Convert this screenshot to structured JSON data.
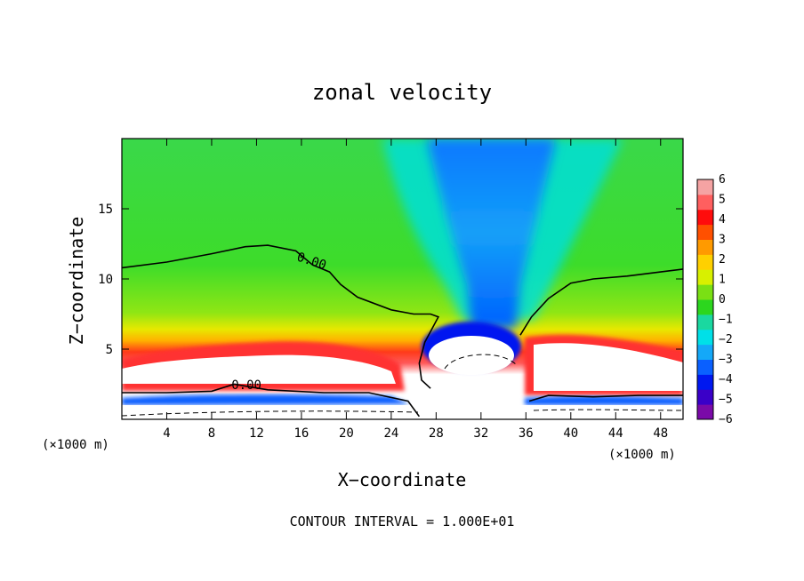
{
  "chart_data": {
    "type": "heatmap",
    "title": "zonal velocity",
    "xlabel": "X−coordinate",
    "ylabel": "Z−coordinate",
    "x_unit_label_left": "(×1000 m)",
    "x_unit_label_right": "(×1000 m)",
    "footer": "CONTOUR INTERVAL = 1.000E+01",
    "xlim": [
      0,
      50
    ],
    "ylim": [
      0,
      20
    ],
    "x_ticks": [
      4,
      8,
      12,
      16,
      20,
      24,
      28,
      32,
      36,
      40,
      44,
      48
    ],
    "x_tick_labels": [
      "4",
      "8",
      "12",
      "16",
      "20",
      "24",
      "28",
      "32",
      "36",
      "40",
      "44",
      "48"
    ],
    "y_ticks": [
      5,
      10,
      15
    ],
    "y_tick_labels": [
      "5",
      "10",
      "15"
    ],
    "colorbar": {
      "range": [
        -6,
        6
      ],
      "ticks": [
        6,
        5,
        4,
        3,
        2,
        1,
        0,
        -1,
        -2,
        -3,
        -4,
        -5,
        -6
      ],
      "tick_labels": [
        "6",
        "5",
        "4",
        "3",
        "2",
        "1",
        "0",
        "−1",
        "−2",
        "−3",
        "−4",
        "−5",
        "−6"
      ],
      "colors": [
        "#7a0aa8",
        "#3a00c8",
        "#0018f0",
        "#0a60ff",
        "#14a8f8",
        "#00e0e8",
        "#1ad8a0",
        "#2cd61e",
        "#7ae014",
        "#d8f000",
        "#ffd000",
        "#ff9a00",
        "#ff5000",
        "#ff0c0c",
        "#ff5f5f",
        "#f5a3a3"
      ]
    },
    "contour_labels": [
      {
        "text": "0.00",
        "x": 16.8,
        "y": 11.0,
        "rotation": 18
      },
      {
        "text": "0.00",
        "x": 11.1,
        "y": 2.15,
        "rotation": 0
      }
    ],
    "zero_contour_upper": {
      "x": [
        0,
        4,
        8,
        11,
        13,
        15.5,
        17,
        18.5,
        19.5,
        21,
        24,
        26,
        27.5,
        28.2,
        27,
        26.5,
        26.7,
        27.5
      ],
      "y": [
        10.8,
        11.2,
        11.8,
        12.3,
        12.4,
        12.0,
        11.0,
        10.5,
        9.6,
        8.7,
        7.8,
        7.5,
        7.5,
        7.3,
        5.5,
        4.0,
        2.8,
        2.2
      ]
    },
    "zero_contour_right": {
      "x": [
        35.5,
        36.5,
        38,
        40,
        42,
        45,
        48,
        50
      ],
      "y": [
        6.0,
        7.3,
        8.6,
        9.7,
        10.0,
        10.2,
        10.5,
        10.7
      ]
    },
    "zero_contour_lower": {
      "x": [
        0,
        4,
        8,
        10,
        13,
        18,
        22,
        25.5,
        26.5
      ],
      "y": [
        1.9,
        1.9,
        2.0,
        2.5,
        2.1,
        1.9,
        1.9,
        1.3,
        0.2
      ]
    },
    "zero_contour_lower_right": {
      "x": [
        36.3,
        38,
        42,
        46,
        50
      ],
      "y": [
        1.3,
        1.7,
        1.6,
        1.7,
        1.7
      ]
    }
  }
}
